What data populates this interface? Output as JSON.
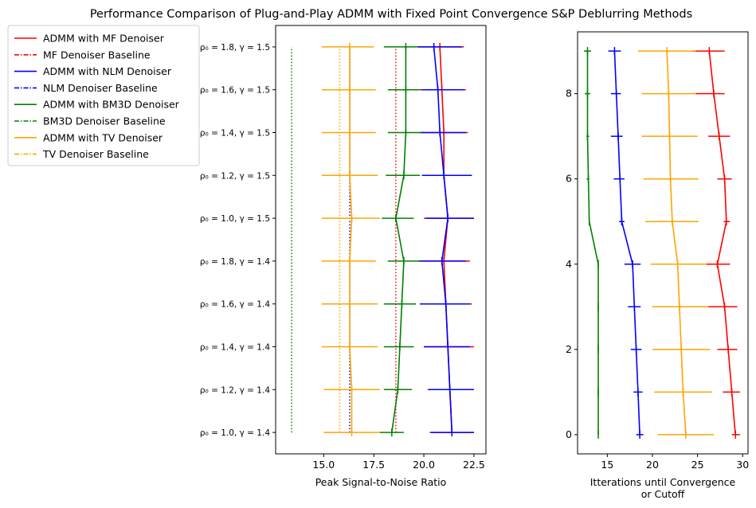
{
  "title": "Performance Comparison of Plug-and-Play ADMM with Fixed Point Convergence S&P Deblurring Methods",
  "colors": {
    "mf": "#ff0000",
    "nlm": "#0000ff",
    "bm3d": "#008000",
    "tv": "#ffa500"
  },
  "legend": {
    "placement": "upper-left-outside",
    "entries": [
      {
        "label": "ADMM with MF Denoiser",
        "color": "#ff0000",
        "style": "solid"
      },
      {
        "label": "MF Denoiser Baseline",
        "color": "#ff0000",
        "style": "dashdot"
      },
      {
        "label": "ADMM with NLM Denoiser",
        "color": "#0000ff",
        "style": "solid"
      },
      {
        "label": "NLM Denoiser Baseline",
        "color": "#0000ff",
        "style": "dashdot"
      },
      {
        "label": "ADMM with BM3D Denoiser",
        "color": "#008000",
        "style": "solid"
      },
      {
        "label": "BM3D Denoiser Baseline",
        "color": "#008000",
        "style": "dashdot"
      },
      {
        "label": "ADMM with TV Denoiser",
        "color": "#ffa500",
        "style": "solid"
      },
      {
        "label": "TV Denoiser Baseline",
        "color": "#ffa500",
        "style": "dashdot"
      }
    ]
  },
  "chart_data": [
    {
      "type": "line",
      "orientation": "horizontal-errorbars",
      "xlabel": "Peak Signal-to-Noise Ratio",
      "ylabel": "",
      "xlim": [
        12.6,
        23.1
      ],
      "ylim": [
        -0.5,
        9.5
      ],
      "xticks": [
        15.0,
        17.5,
        20.0,
        22.5
      ],
      "xtick_labels": [
        "15.0",
        "17.5",
        "20.0",
        "22.5"
      ],
      "yticks": [
        0,
        1,
        2,
        3,
        4,
        5,
        6,
        7,
        8,
        9
      ],
      "ytick_labels": [
        "ρ₀ = 1.0, γ = 1.4",
        "ρ₀ = 1.2, γ = 1.4",
        "ρ₀ = 1.4, γ = 1.4",
        "ρ₀ = 1.6, γ = 1.4",
        "ρ₀ = 1.8, γ = 1.4",
        "ρ₀ = 1.0, γ = 1.5",
        "ρ₀ = 1.2, γ = 1.5",
        "ρ₀ = 1.4, γ = 1.5",
        "ρ₀ = 1.6, γ = 1.5",
        "ρ₀ = 1.8, γ = 1.5"
      ],
      "grid": false,
      "series": [
        {
          "key": "mf",
          "name": "ADMM with MF Denoiser",
          "color": "#ff0000",
          "values": [
            21.4,
            21.3,
            21.2,
            21.1,
            21.0,
            21.2,
            21.0,
            21.0,
            20.9,
            20.8
          ],
          "err_low": [
            20.4,
            20.2,
            20.0,
            19.9,
            19.8,
            20.0,
            19.9,
            19.8,
            19.8,
            19.7
          ],
          "err_high": [
            22.5,
            22.5,
            22.5,
            22.4,
            22.3,
            22.5,
            22.3,
            22.2,
            22.1,
            22.0
          ]
        },
        {
          "key": "nlm",
          "name": "ADMM with NLM Denoiser",
          "color": "#0000ff",
          "values": [
            21.4,
            21.3,
            21.2,
            21.1,
            20.9,
            21.2,
            21.0,
            20.8,
            20.7,
            20.5
          ],
          "err_low": [
            20.3,
            20.2,
            20.0,
            19.8,
            19.7,
            20.1,
            19.9,
            19.8,
            19.9,
            19.7
          ],
          "err_high": [
            22.5,
            22.5,
            22.3,
            22.3,
            22.1,
            22.5,
            22.4,
            22.1,
            22.0,
            21.9
          ]
        },
        {
          "key": "bm3d",
          "name": "ADMM with BM3D Denoiser",
          "color": "#008000",
          "values": [
            18.4,
            18.7,
            18.8,
            18.9,
            19.0,
            18.6,
            19.0,
            19.1,
            19.1,
            19.1
          ],
          "err_low": [
            17.8,
            18.0,
            18.0,
            18.0,
            18.2,
            17.9,
            18.1,
            18.2,
            18.2,
            18.0
          ],
          "err_high": [
            19.0,
            19.4,
            19.5,
            19.6,
            19.8,
            19.5,
            19.8,
            19.9,
            19.8,
            19.7
          ]
        },
        {
          "key": "tv",
          "name": "ADMM with TV Denoiser",
          "color": "#ffa500",
          "values": [
            16.4,
            16.4,
            16.3,
            16.3,
            16.3,
            16.4,
            16.3,
            16.3,
            16.3,
            16.3
          ],
          "err_low": [
            15.0,
            15.0,
            14.9,
            14.9,
            14.9,
            14.9,
            14.9,
            14.9,
            14.9,
            14.9
          ],
          "err_high": [
            17.8,
            17.8,
            17.7,
            17.7,
            17.6,
            17.8,
            17.7,
            17.6,
            17.6,
            17.5
          ]
        }
      ],
      "baselines": [
        {
          "key": "mf",
          "name": "MF Denoiser Baseline",
          "color": "#ff0000",
          "style": "dotted",
          "value": 18.6
        },
        {
          "key": "nlm",
          "name": "NLM Denoiser Baseline",
          "color": "#0000ff",
          "style": "dotted",
          "value": 16.3
        },
        {
          "key": "bm3d",
          "name": "BM3D Denoiser Baseline",
          "color": "#008000",
          "style": "dotted",
          "value": 13.4
        },
        {
          "key": "tv",
          "name": "TV Denoiser Baseline",
          "color": "#ffa500",
          "style": "dotted",
          "value": 15.8
        }
      ]
    },
    {
      "type": "line",
      "orientation": "horizontal-errorbars",
      "xlabel": "Itterations until Convergence\nor Cutoff",
      "ylabel": "",
      "xlim": [
        11.7,
        30.6
      ],
      "ylim": [
        -0.45,
        9.45
      ],
      "xticks": [
        15,
        20,
        25,
        30
      ],
      "xtick_labels": [
        "15",
        "20",
        "25",
        "30"
      ],
      "yticks": [
        0,
        2,
        4,
        6,
        8
      ],
      "ytick_labels": [
        "0",
        "2",
        "4",
        "6",
        "8"
      ],
      "grid": false,
      "series": [
        {
          "key": "mf",
          "name": "ADMM with MF Denoiser",
          "color": "#ff0000",
          "values": [
            29.2,
            28.8,
            28.4,
            28.0,
            27.2,
            28.2,
            28.0,
            27.4,
            26.8,
            26.3
          ],
          "err_low": [
            28.8,
            27.8,
            27.2,
            26.2,
            25.8,
            27.9,
            27.2,
            26.2,
            24.8,
            24.4
          ],
          "err_high": [
            29.7,
            29.7,
            29.4,
            29.4,
            28.6,
            28.6,
            28.8,
            28.6,
            28.0,
            28.0
          ]
        },
        {
          "key": "nlm",
          "name": "ADMM with NLM Denoiser",
          "color": "#0000ff",
          "values": [
            18.6,
            18.4,
            18.2,
            18.0,
            17.8,
            16.6,
            16.4,
            16.2,
            16.0,
            15.8
          ],
          "err_low": [
            18.2,
            17.9,
            17.6,
            17.3,
            16.9,
            16.3,
            15.7,
            15.4,
            15.4,
            15.1
          ],
          "err_high": [
            19.0,
            18.9,
            18.8,
            18.7,
            18.7,
            16.9,
            16.9,
            16.7,
            16.5,
            16.5
          ]
        },
        {
          "key": "bm3d",
          "name": "ADMM with BM3D Denoiser",
          "color": "#008000",
          "values": [
            14.0,
            14.0,
            14.0,
            14.0,
            14.0,
            13.0,
            12.9,
            12.8,
            12.8,
            12.8
          ],
          "err_low": [
            14.0,
            14.0,
            14.0,
            14.0,
            14.0,
            13.0,
            12.7,
            12.7,
            12.5,
            12.4
          ],
          "err_high": [
            14.0,
            14.0,
            14.0,
            14.0,
            14.0,
            13.0,
            13.0,
            13.0,
            13.1,
            13.2
          ]
        },
        {
          "key": "tv",
          "name": "ADMM with TV Denoiser",
          "color": "#ffa500",
          "values": [
            23.7,
            23.4,
            23.2,
            23.0,
            22.8,
            22.2,
            22.0,
            21.9,
            21.8,
            21.6
          ],
          "err_low": [
            20.6,
            20.2,
            20.0,
            20.0,
            19.8,
            19.2,
            19.0,
            18.8,
            18.8,
            18.4
          ],
          "err_high": [
            26.8,
            26.6,
            26.4,
            26.2,
            26.0,
            25.1,
            25.1,
            25.0,
            24.8,
            24.8
          ]
        }
      ]
    }
  ]
}
